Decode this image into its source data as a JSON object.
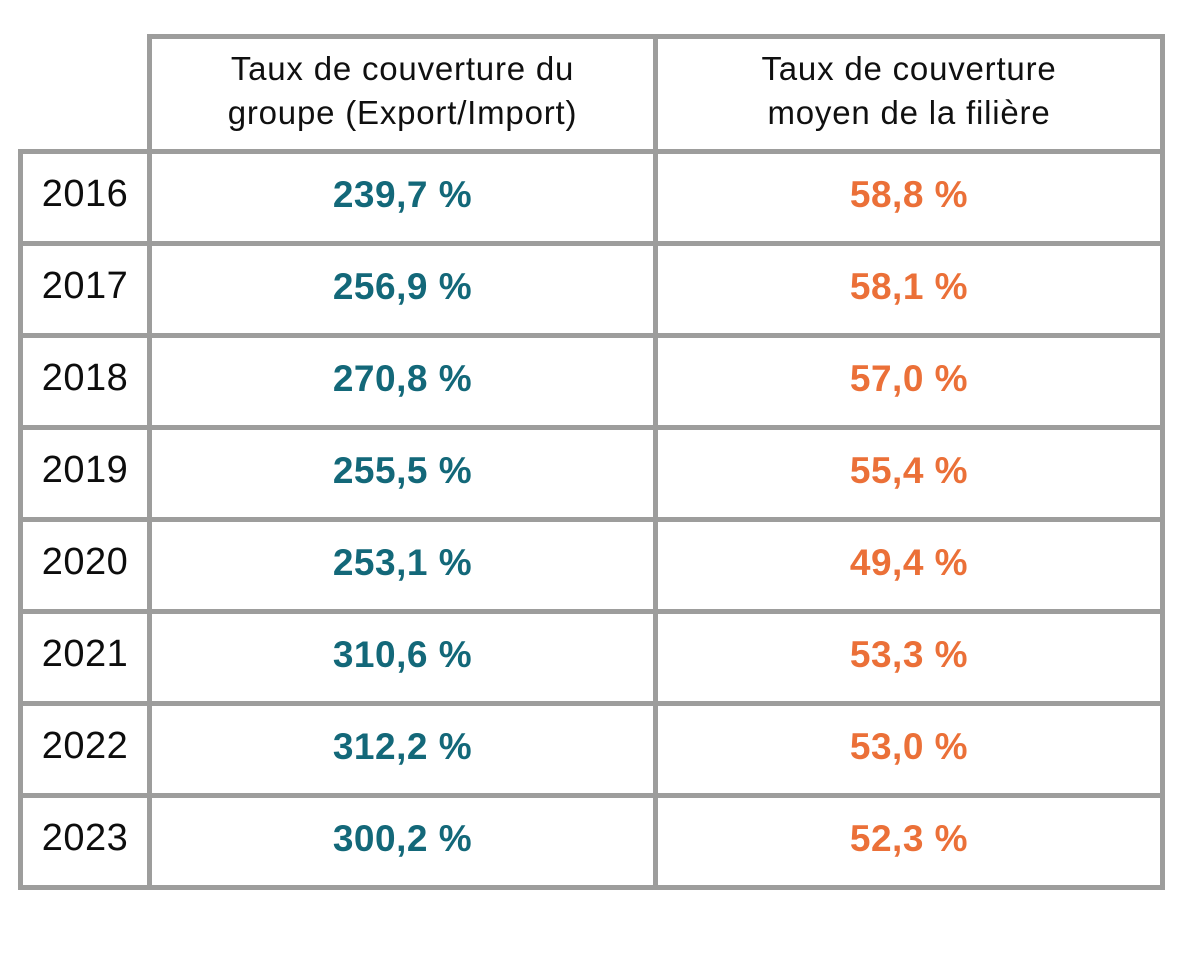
{
  "table": {
    "headers": [
      {
        "line1": "Taux de couverture du",
        "line2": "groupe (Export/Import)"
      },
      {
        "line1": "Taux de couverture",
        "line2": "moyen de la filière"
      }
    ],
    "rows": [
      {
        "year": "2016",
        "group_value": "239,7 %",
        "sector_value": "58,8 %"
      },
      {
        "year": "2017",
        "group_value": "256,9 %",
        "sector_value": "58,1 %"
      },
      {
        "year": "2018",
        "group_value": "270,8 %",
        "sector_value": "57,0 %"
      },
      {
        "year": "2019",
        "group_value": "255,5 %",
        "sector_value": "55,4 %"
      },
      {
        "year": "2020",
        "group_value": "253,1 %",
        "sector_value": "49,4 %"
      },
      {
        "year": "2021",
        "group_value": "310,6 %",
        "sector_value": "53,3 %"
      },
      {
        "year": "2022",
        "group_value": "312,2 %",
        "sector_value": "53,0 %"
      },
      {
        "year": "2023",
        "group_value": "300,2 %",
        "sector_value": "52,3 %"
      }
    ],
    "colors": {
      "group_value_text": "#136879",
      "sector_value_text": "#eb7038",
      "grid": "#9d9d9c",
      "header_text": "#101010",
      "background": "#ffffff"
    }
  },
  "chart_data": {
    "type": "table",
    "title": "",
    "categories": [
      "2016",
      "2017",
      "2018",
      "2019",
      "2020",
      "2021",
      "2022",
      "2023"
    ],
    "series": [
      {
        "name": "Taux de couverture du groupe (Export/Import)",
        "values": [
          239.7,
          256.9,
          270.8,
          255.5,
          253.1,
          310.6,
          312.2,
          300.2
        ],
        "unit": "%",
        "color": "#136879"
      },
      {
        "name": "Taux de couverture moyen de la filière",
        "values": [
          58.8,
          58.1,
          57.0,
          55.4,
          49.4,
          53.3,
          53.0,
          52.3
        ],
        "unit": "%",
        "color": "#eb7038"
      }
    ],
    "layout": {
      "grid": true,
      "grid_color": "#9d9d9c",
      "decimal_separator": ","
    }
  }
}
